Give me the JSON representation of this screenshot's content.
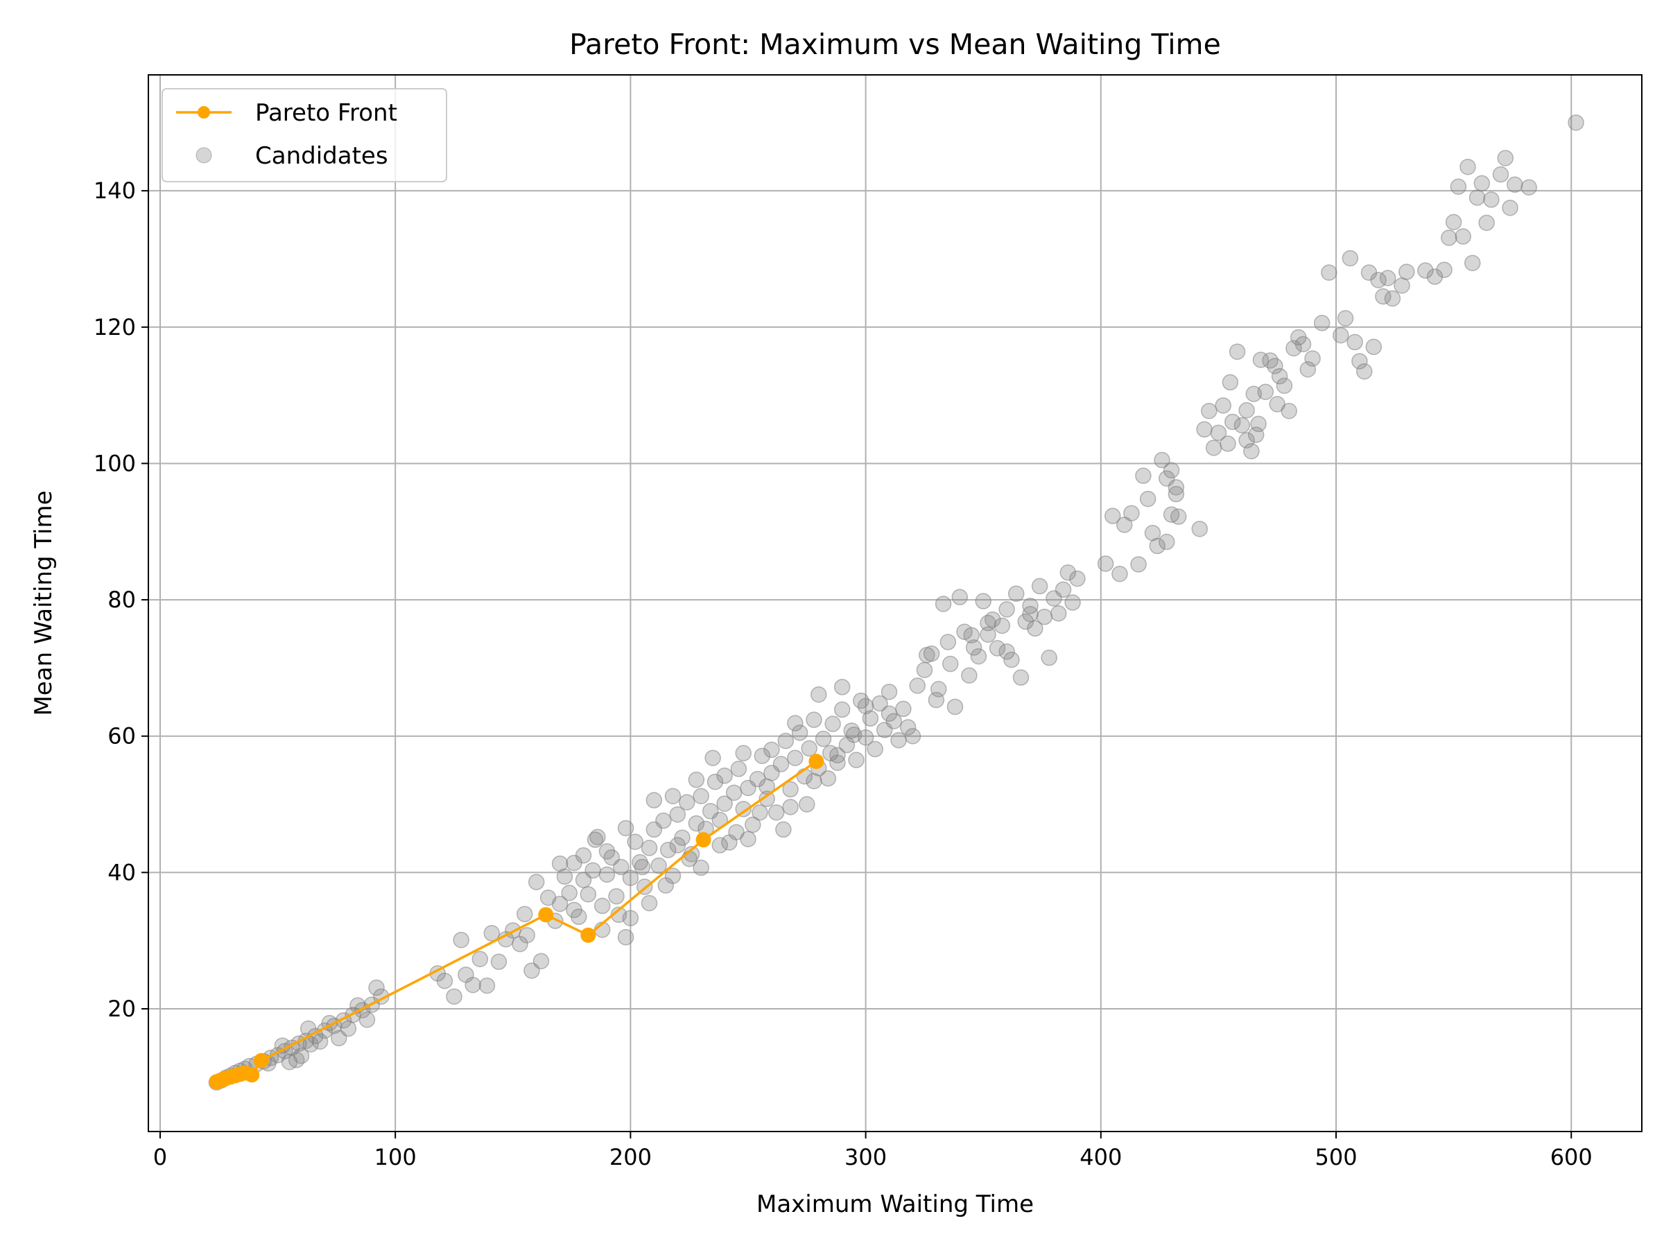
{
  "chart_data": {
    "type": "scatter",
    "title": "Pareto Front: Maximum vs Mean Waiting Time",
    "xlabel": "Maximum Waiting Time",
    "ylabel": "Mean Waiting Time",
    "xlim": [
      -5,
      630
    ],
    "ylim": [
      2,
      157
    ],
    "xticks": [
      0,
      100,
      200,
      300,
      400,
      500,
      600
    ],
    "yticks": [
      20,
      40,
      60,
      80,
      100,
      120,
      140
    ],
    "grid": true,
    "legend_position": "top-left",
    "series": [
      {
        "name": "Pareto Front",
        "kind": "line-marker",
        "color": "#ffa500",
        "points": [
          [
            24,
            9.3
          ],
          [
            25,
            9.4
          ],
          [
            26,
            9.5
          ],
          [
            27,
            9.7
          ],
          [
            28,
            9.8
          ],
          [
            30,
            10.0
          ],
          [
            32,
            10.2
          ],
          [
            34,
            10.4
          ],
          [
            36,
            10.6
          ],
          [
            39,
            10.3
          ],
          [
            43,
            12.4
          ],
          [
            164,
            33.8
          ],
          [
            182,
            30.8
          ],
          [
            231,
            44.8
          ],
          [
            279,
            56.3
          ]
        ]
      },
      {
        "name": "Candidates",
        "kind": "scatter",
        "color": "#808080",
        "points": [
          [
            24,
            9.2
          ],
          [
            26,
            9.5
          ],
          [
            28,
            9.9
          ],
          [
            30,
            10.2
          ],
          [
            32,
            10.6
          ],
          [
            34,
            10.9
          ],
          [
            36,
            11.2
          ],
          [
            38,
            11.6
          ],
          [
            41,
            11.9
          ],
          [
            44,
            12.3
          ],
          [
            47,
            12.8
          ],
          [
            50,
            13.2
          ],
          [
            53,
            13.8
          ],
          [
            56,
            14.3
          ],
          [
            59,
            14.9
          ],
          [
            62,
            15.3
          ],
          [
            66,
            16.0
          ],
          [
            70,
            16.8
          ],
          [
            74,
            17.5
          ],
          [
            78,
            18.3
          ],
          [
            82,
            19.1
          ],
          [
            86,
            19.8
          ],
          [
            90,
            20.6
          ],
          [
            94,
            21.8
          ],
          [
            55,
            12.2
          ],
          [
            60,
            13.1
          ],
          [
            64,
            14.8
          ],
          [
            68,
            15.2
          ],
          [
            72,
            17.9
          ],
          [
            80,
            17.1
          ],
          [
            84,
            20.5
          ],
          [
            92,
            23.1
          ],
          [
            46,
            12.0
          ],
          [
            52,
            14.6
          ],
          [
            58,
            12.5
          ],
          [
            63,
            17.1
          ],
          [
            76,
            15.7
          ],
          [
            88,
            18.4
          ],
          [
            118,
            25.2
          ],
          [
            121,
            24.1
          ],
          [
            125,
            21.8
          ],
          [
            128,
            30.1
          ],
          [
            130,
            25.0
          ],
          [
            133,
            23.5
          ],
          [
            136,
            27.3
          ],
          [
            139,
            23.4
          ],
          [
            141,
            31.1
          ],
          [
            144,
            26.9
          ],
          [
            147,
            30.2
          ],
          [
            150,
            31.5
          ],
          [
            153,
            29.5
          ],
          [
            156,
            30.8
          ],
          [
            158,
            25.6
          ],
          [
            160,
            38.6
          ],
          [
            162,
            27.0
          ],
          [
            165,
            36.3
          ],
          [
            168,
            32.9
          ],
          [
            170,
            35.4
          ],
          [
            172,
            39.4
          ],
          [
            174,
            37.0
          ],
          [
            176,
            41.4
          ],
          [
            178,
            33.5
          ],
          [
            180,
            38.9
          ],
          [
            182,
            36.8
          ],
          [
            184,
            40.3
          ],
          [
            186,
            45.2
          ],
          [
            188,
            35.1
          ],
          [
            190,
            39.7
          ],
          [
            192,
            42.2
          ],
          [
            194,
            36.5
          ],
          [
            196,
            40.8
          ],
          [
            198,
            30.5
          ],
          [
            200,
            39.2
          ],
          [
            202,
            44.5
          ],
          [
            204,
            41.5
          ],
          [
            206,
            37.9
          ],
          [
            208,
            43.6
          ],
          [
            210,
            46.3
          ],
          [
            212,
            41.0
          ],
          [
            214,
            47.6
          ],
          [
            216,
            43.3
          ],
          [
            218,
            39.5
          ],
          [
            220,
            48.5
          ],
          [
            222,
            45.1
          ],
          [
            224,
            50.3
          ],
          [
            226,
            42.7
          ],
          [
            228,
            47.2
          ],
          [
            230,
            51.2
          ],
          [
            232,
            46.4
          ],
          [
            234,
            49.0
          ],
          [
            236,
            53.3
          ],
          [
            238,
            47.7
          ],
          [
            240,
            50.1
          ],
          [
            242,
            44.4
          ],
          [
            244,
            51.7
          ],
          [
            246,
            55.2
          ],
          [
            248,
            49.3
          ],
          [
            250,
            52.4
          ],
          [
            252,
            47.0
          ],
          [
            254,
            53.7
          ],
          [
            256,
            57.1
          ],
          [
            258,
            50.8
          ],
          [
            260,
            54.6
          ],
          [
            262,
            48.8
          ],
          [
            264,
            55.9
          ],
          [
            266,
            59.3
          ],
          [
            268,
            52.2
          ],
          [
            270,
            56.8
          ],
          [
            272,
            60.5
          ],
          [
            274,
            54.1
          ],
          [
            276,
            58.2
          ],
          [
            278,
            62.4
          ],
          [
            280,
            55.3
          ],
          [
            282,
            59.6
          ],
          [
            284,
            53.8
          ],
          [
            286,
            61.8
          ],
          [
            288,
            57.2
          ],
          [
            290,
            63.9
          ],
          [
            292,
            58.7
          ],
          [
            294,
            60.8
          ],
          [
            296,
            56.5
          ],
          [
            298,
            65.2
          ],
          [
            300,
            59.8
          ],
          [
            302,
            62.6
          ],
          [
            304,
            58.1
          ],
          [
            306,
            64.8
          ],
          [
            308,
            60.9
          ],
          [
            310,
            66.5
          ],
          [
            312,
            62.2
          ],
          [
            314,
            59.4
          ],
          [
            316,
            64.0
          ],
          [
            318,
            61.3
          ],
          [
            155,
            33.9
          ],
          [
            170,
            41.3
          ],
          [
            185,
            44.8
          ],
          [
            195,
            33.8
          ],
          [
            205,
            40.8
          ],
          [
            215,
            38.1
          ],
          [
            225,
            42.0
          ],
          [
            235,
            56.8
          ],
          [
            245,
            45.9
          ],
          [
            255,
            48.8
          ],
          [
            265,
            46.3
          ],
          [
            275,
            50.0
          ],
          [
            285,
            57.5
          ],
          [
            295,
            60.2
          ],
          [
            210,
            50.6
          ],
          [
            200,
            33.3
          ],
          [
            190,
            43.1
          ],
          [
            220,
            44.0
          ],
          [
            230,
            40.7
          ],
          [
            240,
            54.2
          ],
          [
            250,
            44.9
          ],
          [
            260,
            58.0
          ],
          [
            270,
            61.9
          ],
          [
            280,
            66.1
          ],
          [
            290,
            67.2
          ],
          [
            180,
            42.5
          ],
          [
            176,
            34.5
          ],
          [
            188,
            31.6
          ],
          [
            198,
            46.5
          ],
          [
            208,
            35.5
          ],
          [
            218,
            51.2
          ],
          [
            228,
            53.6
          ],
          [
            238,
            44.0
          ],
          [
            248,
            57.5
          ],
          [
            258,
            52.6
          ],
          [
            268,
            49.6
          ],
          [
            278,
            53.4
          ],
          [
            288,
            56.1
          ],
          [
            300,
            64.4
          ],
          [
            310,
            63.3
          ],
          [
            320,
            60.0
          ],
          [
            322,
            67.4
          ],
          [
            325,
            69.7
          ],
          [
            328,
            72.1
          ],
          [
            331,
            66.9
          ],
          [
            333,
            79.4
          ],
          [
            336,
            70.6
          ],
          [
            338,
            64.3
          ],
          [
            340,
            80.4
          ],
          [
            342,
            75.3
          ],
          [
            344,
            68.9
          ],
          [
            346,
            73.0
          ],
          [
            348,
            71.7
          ],
          [
            350,
            79.8
          ],
          [
            352,
            74.9
          ],
          [
            354,
            77.1
          ],
          [
            356,
            72.9
          ],
          [
            358,
            76.2
          ],
          [
            360,
            78.6
          ],
          [
            362,
            71.2
          ],
          [
            364,
            80.9
          ],
          [
            366,
            68.6
          ],
          [
            368,
            76.8
          ],
          [
            370,
            79.1
          ],
          [
            372,
            75.8
          ],
          [
            374,
            82.0
          ],
          [
            376,
            77.5
          ],
          [
            378,
            71.5
          ],
          [
            380,
            80.2
          ],
          [
            382,
            78.0
          ],
          [
            384,
            81.5
          ],
          [
            386,
            84.0
          ],
          [
            388,
            79.6
          ],
          [
            390,
            83.1
          ],
          [
            360,
            72.4
          ],
          [
            345,
            74.8
          ],
          [
            335,
            73.8
          ],
          [
            330,
            65.3
          ],
          [
            326,
            71.9
          ],
          [
            352,
            76.6
          ],
          [
            370,
            77.9
          ],
          [
            402,
            85.3
          ],
          [
            405,
            92.3
          ],
          [
            408,
            83.8
          ],
          [
            410,
            91.0
          ],
          [
            413,
            92.7
          ],
          [
            416,
            85.2
          ],
          [
            418,
            98.2
          ],
          [
            420,
            94.8
          ],
          [
            422,
            89.8
          ],
          [
            424,
            87.9
          ],
          [
            426,
            100.5
          ],
          [
            428,
            88.5
          ],
          [
            430,
            92.5
          ],
          [
            432,
            95.5
          ],
          [
            432,
            96.5
          ],
          [
            433,
            92.2
          ],
          [
            430,
            99.0
          ],
          [
            428,
            97.8
          ],
          [
            442,
            90.4
          ],
          [
            444,
            105.0
          ],
          [
            446,
            107.7
          ],
          [
            448,
            102.3
          ],
          [
            450,
            104.5
          ],
          [
            452,
            108.5
          ],
          [
            454,
            102.9
          ],
          [
            456,
            106.1
          ],
          [
            458,
            116.4
          ],
          [
            460,
            105.6
          ],
          [
            462,
            107.8
          ],
          [
            464,
            101.8
          ],
          [
            466,
            104.2
          ],
          [
            468,
            115.2
          ],
          [
            470,
            110.5
          ],
          [
            472,
            115.1
          ],
          [
            474,
            114.3
          ],
          [
            476,
            112.8
          ],
          [
            478,
            111.4
          ],
          [
            480,
            107.7
          ],
          [
            482,
            116.9
          ],
          [
            484,
            118.5
          ],
          [
            486,
            117.5
          ],
          [
            488,
            113.8
          ],
          [
            490,
            115.4
          ],
          [
            494,
            120.6
          ],
          [
            497,
            128.0
          ],
          [
            502,
            118.8
          ],
          [
            504,
            121.3
          ],
          [
            506,
            130.1
          ],
          [
            508,
            117.8
          ],
          [
            510,
            115.0
          ],
          [
            512,
            113.5
          ],
          [
            514,
            128.0
          ],
          [
            516,
            117.1
          ],
          [
            518,
            126.9
          ],
          [
            520,
            124.5
          ],
          [
            522,
            127.2
          ],
          [
            524,
            124.2
          ],
          [
            528,
            126.1
          ],
          [
            530,
            128.1
          ],
          [
            538,
            128.3
          ],
          [
            542,
            127.4
          ],
          [
            546,
            128.4
          ],
          [
            548,
            133.1
          ],
          [
            550,
            135.4
          ],
          [
            552,
            140.6
          ],
          [
            554,
            133.3
          ],
          [
            556,
            143.5
          ],
          [
            558,
            129.4
          ],
          [
            560,
            139.0
          ],
          [
            562,
            141.1
          ],
          [
            564,
            135.3
          ],
          [
            566,
            138.7
          ],
          [
            570,
            142.4
          ],
          [
            572,
            144.8
          ],
          [
            574,
            137.5
          ],
          [
            576,
            140.9
          ],
          [
            582,
            140.5
          ],
          [
            602,
            150.0
          ],
          [
            455,
            111.9
          ],
          [
            465,
            110.2
          ],
          [
            475,
            108.7
          ],
          [
            462,
            103.4
          ],
          [
            467,
            105.8
          ]
        ]
      }
    ]
  }
}
